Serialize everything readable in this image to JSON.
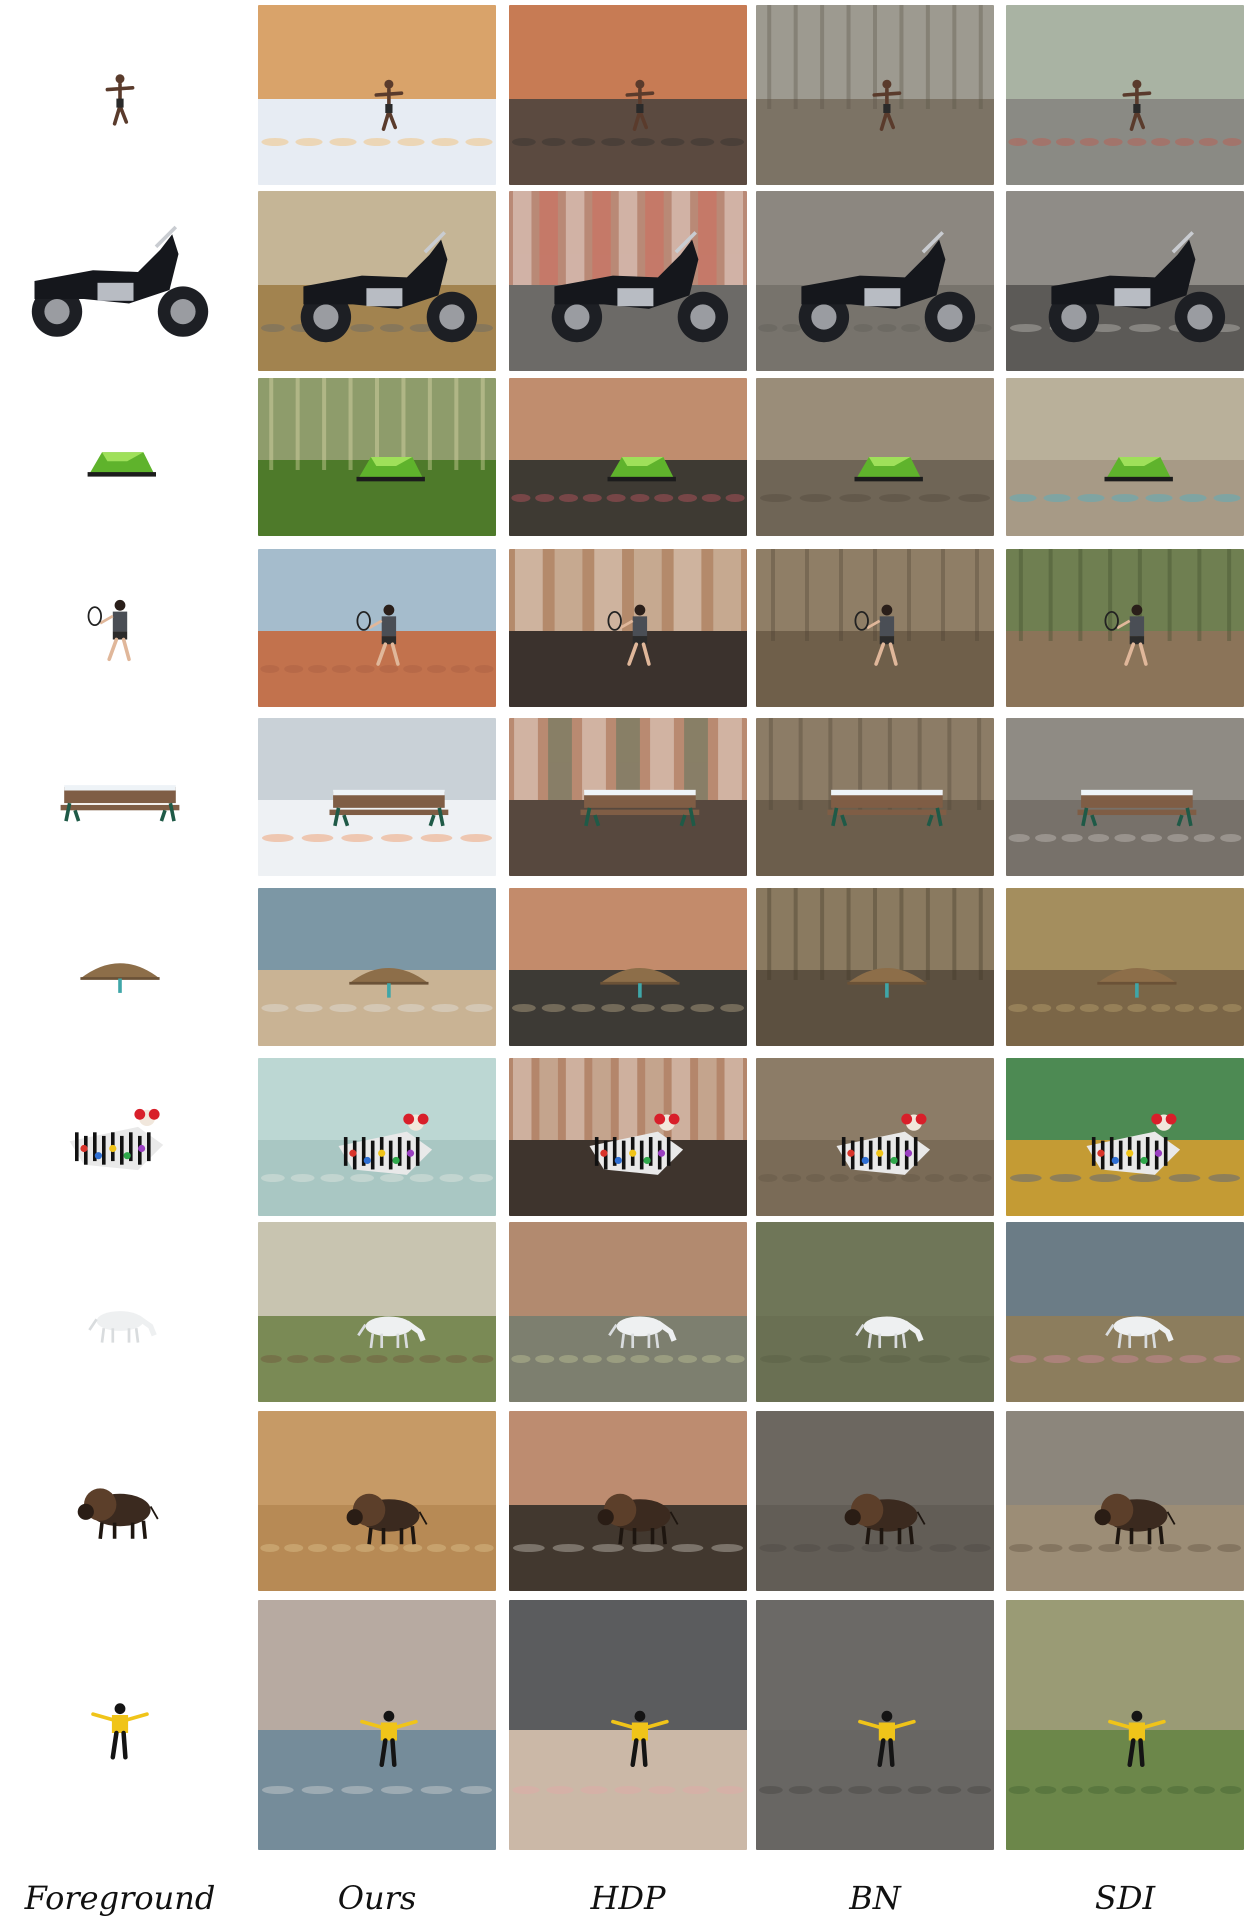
{
  "columns": [
    {
      "label": "Foreground"
    },
    {
      "label": "Ours"
    },
    {
      "label": "HDP"
    },
    {
      "label": "BN"
    },
    {
      "label": "SDI"
    }
  ],
  "rows": [
    {
      "subject": "leaping-man",
      "ours": {
        "scene": "snowy-sunset-sky",
        "sky": "#d9a36a",
        "ground": "#e7ecf3",
        "accent": "#f6b046"
      },
      "hdp": {
        "scene": "colorful-city-sofa",
        "sky": "#c77b54",
        "ground": "#5b4a40",
        "accent": "#2b2b2b"
      },
      "bn": {
        "scene": "bare-forest",
        "sky": "#9d9a90",
        "ground": "#7c7365",
        "accent": "#5a5347"
      },
      "sdi": {
        "scene": "cafe-interior",
        "sky": "#a9b3a3",
        "ground": "#8a8a84",
        "accent": "#d14d3d"
      }
    },
    {
      "subject": "motorcycle",
      "ours": {
        "scene": "field-mountains",
        "sky": "#c5b596",
        "ground": "#a2834f",
        "accent": "#58616f"
      },
      "hdp": {
        "scene": "striped-city",
        "sky": "#b98976",
        "ground": "#6c6a67",
        "accent": "#dd5c52"
      },
      "bn": {
        "scene": "rock-wall",
        "sky": "#8c8780",
        "ground": "#77736c",
        "accent": "#5d5a55"
      },
      "sdi": {
        "scene": "rubble",
        "sky": "#8f8c87",
        "ground": "#5c5a57",
        "accent": "#d6d3ce"
      }
    },
    {
      "subject": "green-tent",
      "ours": {
        "scene": "sunlit-forest",
        "sky": "#8e9c6b",
        "ground": "#4e7a2a",
        "accent": "#f1e7b9"
      },
      "hdp": {
        "scene": "city-street",
        "sky": "#c08d6e",
        "ground": "#3e3a33",
        "accent": "#e25e6d"
      },
      "bn": {
        "scene": "cave",
        "sky": "#9a8d79",
        "ground": "#6f6556",
        "accent": "#4d4539"
      },
      "sdi": {
        "scene": "indoor-pool",
        "sky": "#b9b09a",
        "ground": "#a79a86",
        "accent": "#38b8d8"
      }
    },
    {
      "subject": "tennis-player",
      "ours": {
        "scene": "clay-court",
        "sky": "#a5bccc",
        "ground": "#c2724d",
        "accent": "#a35b41"
      },
      "hdp": {
        "scene": "storefront",
        "sky": "#b48a6b",
        "ground": "#3b322d",
        "accent": "#e8e1d7"
      },
      "bn": {
        "scene": "bare-forest",
        "sky": "#8f7e66",
        "ground": "#6f5f4a",
        "accent": "#4d4335"
      },
      "sdi": {
        "scene": "crowd-forest",
        "sky": "#6f7f51",
        "ground": "#8b7459",
        "accent": "#3e4c2c"
      }
    },
    {
      "subject": "snowy-bench",
      "ours": {
        "scene": "snowman-park",
        "sky": "#c9d1d7",
        "ground": "#eef1f4",
        "accent": "#ee7b37"
      },
      "hdp": {
        "scene": "storefront",
        "sky": "#b98a71",
        "ground": "#57483e",
        "accent": "#2f6a55"
      },
      "bn": {
        "scene": "bare-forest",
        "sky": "#8c7c66",
        "ground": "#6c5e4c",
        "accent": "#4e4536"
      },
      "sdi": {
        "scene": "construction",
        "sky": "#8f8b84",
        "ground": "#77716a",
        "accent": "#d8d4cf"
      }
    },
    {
      "subject": "straw-umbrella",
      "ours": {
        "scene": "beach",
        "sky": "#7c97a5",
        "ground": "#c9b394",
        "accent": "#e9eef0"
      },
      "hdp": {
        "scene": "city-street",
        "sky": "#c38b6b",
        "ground": "#3d3a35",
        "accent": "#d9c59e"
      },
      "bn": {
        "scene": "bare-forest",
        "sky": "#8a7a60",
        "ground": "#5c5040",
        "accent": "#403727"
      },
      "sdi": {
        "scene": "straw-field",
        "sky": "#a48e5e",
        "ground": "#7b6647",
        "accent": "#c9b27a"
      }
    },
    {
      "subject": "clown",
      "ours": {
        "scene": "bathroom",
        "sky": "#bcd7d3",
        "ground": "#a9c7c3",
        "accent": "#f1efe9"
      },
      "hdp": {
        "scene": "storefront",
        "sky": "#b4866b",
        "ground": "#3e342d",
        "accent": "#e3dccf"
      },
      "bn": {
        "scene": "dirt",
        "sky": "#8c7c67",
        "ground": "#7a6b57",
        "accent": "#5e5242"
      },
      "sdi": {
        "scene": "collage",
        "sky": "#4d8a53",
        "ground": "#c49b34",
        "accent": "#2d4e9e"
      }
    },
    {
      "subject": "white-horse",
      "ours": {
        "scene": "paddock",
        "sky": "#c8c4b0",
        "ground": "#7a8a55",
        "accent": "#6e4a34"
      },
      "hdp": {
        "scene": "living-room",
        "sky": "#b28a6f",
        "ground": "#7d7f6f",
        "accent": "#d2d6a1"
      },
      "bn": {
        "scene": "grass",
        "sky": "#6f7658",
        "ground": "#6a7053",
        "accent": "#555b41"
      },
      "sdi": {
        "scene": "stone-wall",
        "sky": "#6b7c86",
        "ground": "#8c7d5d",
        "accent": "#e58cb1"
      }
    },
    {
      "subject": "bison",
      "ours": {
        "scene": "barn-sunset",
        "sky": "#c69a66",
        "ground": "#b78a55",
        "accent": "#e5cf9c"
      },
      "hdp": {
        "scene": "city-street",
        "sky": "#bd8c70",
        "ground": "#42382f",
        "accent": "#e5e0d7"
      },
      "bn": {
        "scene": "mud",
        "sky": "#6c6760",
        "ground": "#625d56",
        "accent": "#4a4540"
      },
      "sdi": {
        "scene": "mud-hill",
        "sky": "#8c867c",
        "ground": "#9c8d76",
        "accent": "#5a4b3a"
      }
    },
    {
      "subject": "skater",
      "ours": {
        "scene": "ocean-wave",
        "sky": "#b7aaa1",
        "ground": "#758c9a",
        "accent": "#e9e6e2"
      },
      "hdp": {
        "scene": "flower-bouquet",
        "sky": "#5b5c5e",
        "ground": "#cbb8a7",
        "accent": "#e8a6a8"
      },
      "bn": {
        "scene": "asphalt",
        "sky": "#6b6966",
        "ground": "#686663",
        "accent": "#3f3d3b"
      },
      "sdi": {
        "scene": "hillside",
        "sky": "#9a9b75",
        "ground": "#6c874a",
        "accent": "#3a5a2c"
      }
    }
  ]
}
